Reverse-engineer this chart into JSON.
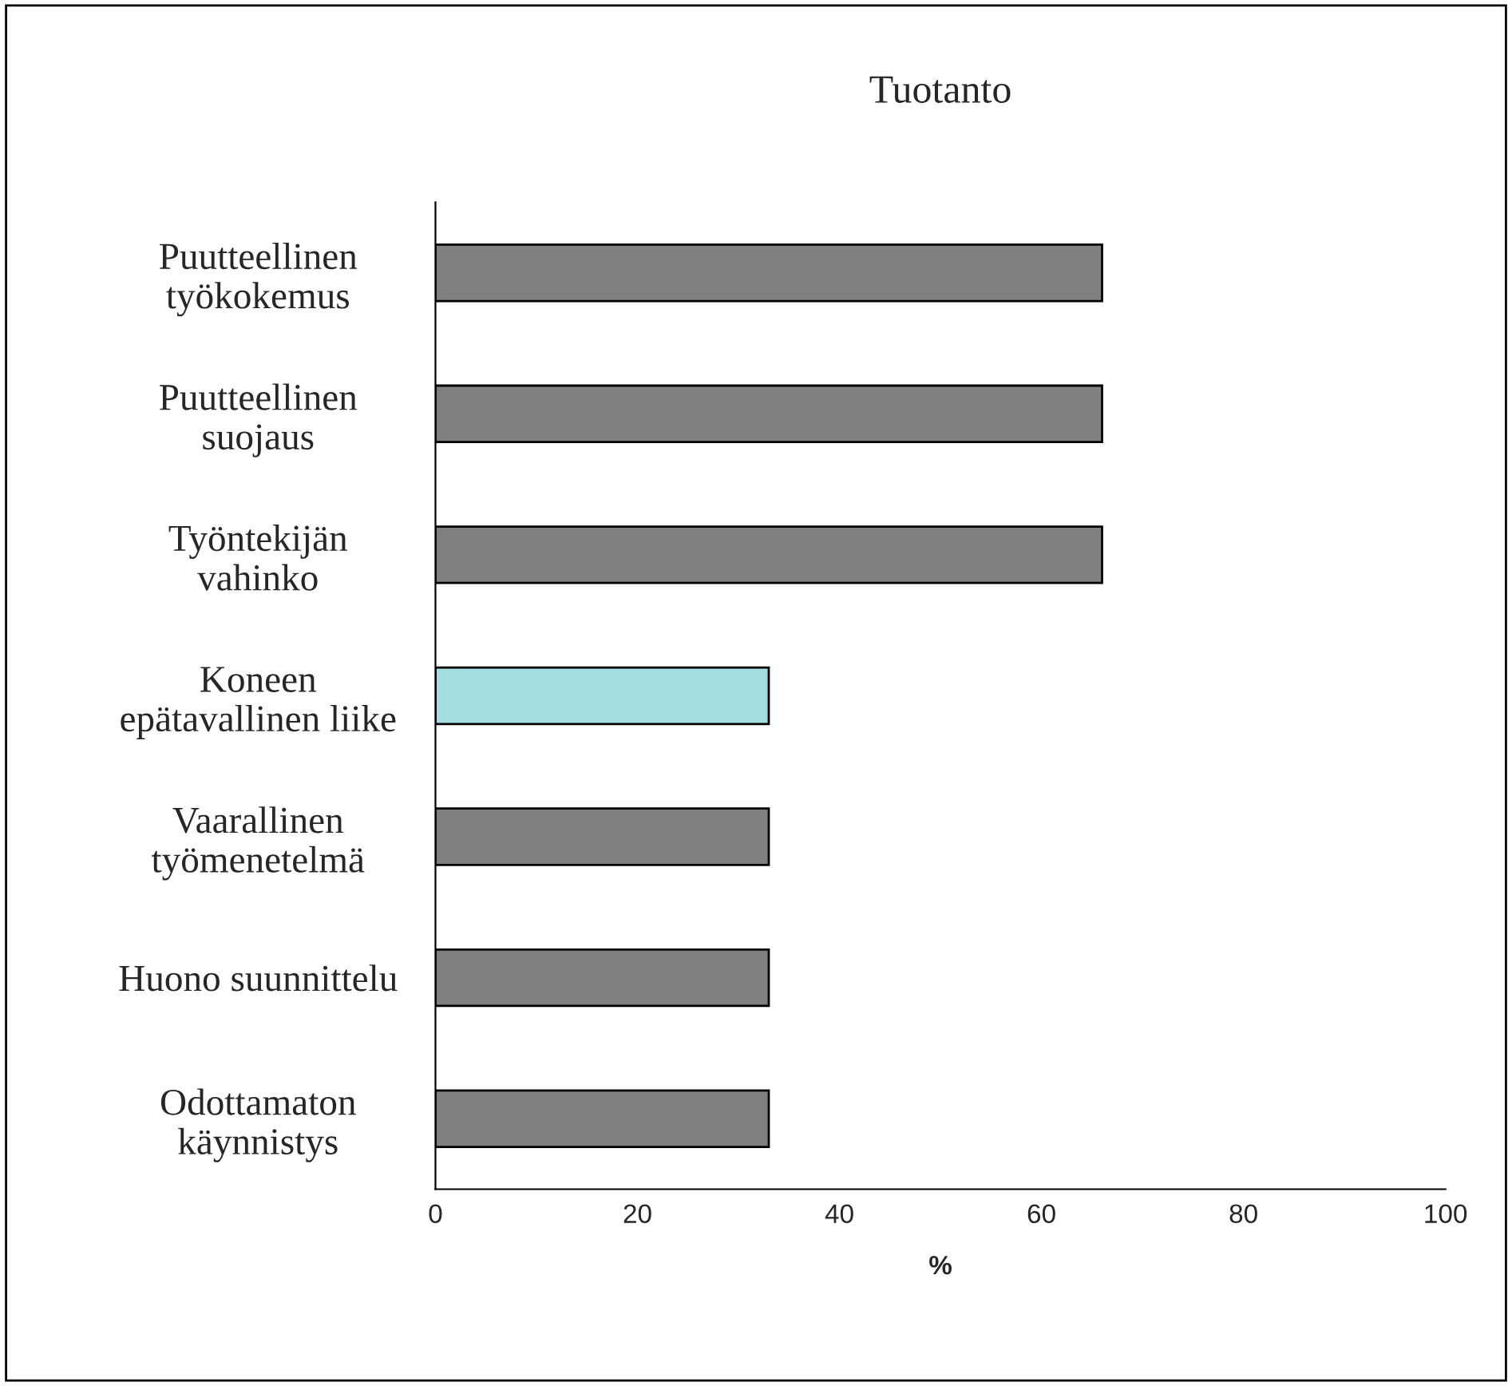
{
  "chart_data": {
    "type": "bar",
    "orientation": "horizontal",
    "title": "Tuotanto",
    "xlabel": "%",
    "categories": [
      "Puutteellinen\ntyökokemus",
      "Puutteellinen\nsuojaus",
      "Työntekijän\nvahinko",
      "Koneen\nepätavallinen liike",
      "Vaarallinen\ntyömenetelmä",
      "Huono suunnittelu",
      "Odottamaton\nkäynnistys"
    ],
    "values": [
      66,
      66,
      66,
      33,
      33,
      33,
      33
    ],
    "colors": [
      "#808080",
      "#808080",
      "#808080",
      "#a3dfe0",
      "#808080",
      "#808080",
      "#808080"
    ],
    "xlim": [
      0,
      100
    ],
    "xticks": [
      0,
      20,
      40,
      60,
      80,
      100
    ],
    "grid": false,
    "legend": false
  }
}
